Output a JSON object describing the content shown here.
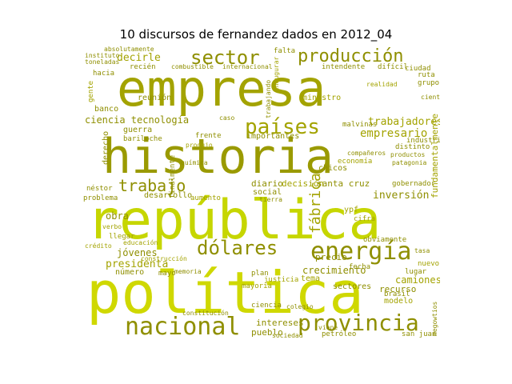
{
  "title": "10 discursos de fernandez dados en 2012_04",
  "colors": {
    "lime": "#c6d600",
    "olive": "#a3a300",
    "dark_olive": "#8f8f00",
    "pale": "#cfcf3a"
  },
  "words": {
    "empresa": "empresa",
    "historia": "historia",
    "republica": "república",
    "politica": "política",
    "nacional": "nacional",
    "provincia": "provincia",
    "energia": "energía",
    "dolares": "dólares",
    "sector": "sector",
    "produccion": "producción",
    "paises": "países",
    "trabajo": "trabajo",
    "fabrica": "fábrica",
    "trabajadores": "trabajadores",
    "empresario": "empresario",
    "inversion": "inversión",
    "ciencia_tecnologia": "ciencia tecnología",
    "decirle": "decirle",
    "jovenes": "jóvenes",
    "presidenta": "presidenta",
    "obra": "obra",
    "camiones": "camiones",
    "crecimiento": "crecimiento",
    "santa_cruz": "santa cruz",
    "diario": "diario",
    "decision": "decisión",
    "intereses": "intereses",
    "pueblo": "pueblo",
    "precio": "precio",
    "modelo": "modelo",
    "vida": "vida",
    "tema": "tema",
    "ypf": "ypf",
    "recurso": "recurso",
    "sectores": "sectores",
    "numero": "número",
    "social": "social",
    "derecho": "derecho",
    "chicos": "chicos",
    "guerra": "guerra",
    "importantes": "importantes",
    "banco": "banco",
    "reunion": "reunión",
    "desarrollo": "desarrollo",
    "problema": "problema",
    "nestor": "néstor",
    "gobernador": "gobernador",
    "industria": "industria",
    "malvinas": "malvinas",
    "economia": "economía",
    "ministro": "ministro",
    "falta": "falta",
    "ruta": "ruta",
    "grupo": "grupo",
    "ciudad": "ciudad",
    "realidad": "realidad",
    "hacia": "hacia",
    "gente": "gente",
    "mayo": "mayo",
    "plan": "plan",
    "fecha": "fecha",
    "brasil": "brasil",
    "petroleo": "petróleo",
    "viene": "viene",
    "sociedad": "sociedad",
    "mayoria": "mayoria",
    "justicia": "justicia",
    "nuevo": "nuevo",
    "cifra": "cifra",
    "aumento": "aumento",
    "construccion": "construcción",
    "educacion": "educación",
    "llegar": "llegar",
    "credito": "crédito",
    "verbo": "verbo",
    "produjo": "produjo",
    "quimica": "química",
    "finalmente": "finalmente",
    "fundamentalmente": "fundamentalmente",
    "obviamente": "obviamente",
    "inaugurar": "inaugurar",
    "intendente": "intendente",
    "dificil": "difícil",
    "tierra": "tierra",
    "combustible": "combustible",
    "internacional": "internacional",
    "reciente": "recién",
    "lugar": "lugar",
    "instituto": "instituto",
    "toneladas": "toneladas",
    "absolutamente": "absolutamente",
    "pago": "pago",
    "caso": "caso",
    "frente": "frente",
    "mcgowtios": "megowtios",
    "san_juan": "san juan",
    "distinto": "distinto",
    "productos": "productos",
    "patagonia": "patagonia",
    "companeros": "compañeros",
    "bariloche": "bariloche",
    "trabajando": "trabajando",
    "memoria": "memoria",
    "ciencia": "ciencia",
    "constitucion": "constitución",
    "colegio": "colegio",
    "tasa": "tasa",
    "ciento": "ciento"
  }
}
